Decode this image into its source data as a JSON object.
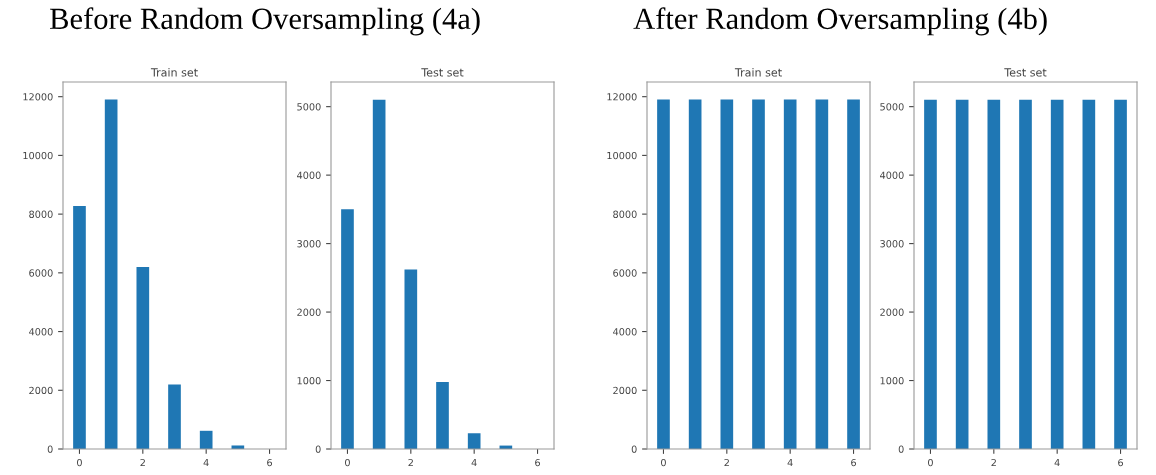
{
  "chart_data": [
    {
      "type": "bar",
      "title": "Train set",
      "annotations": [
        "Before Random Oversampling (4a)"
      ],
      "x": [
        0,
        1,
        2,
        3,
        4,
        5
      ],
      "values": [
        8280,
        11900,
        6200,
        2200,
        620,
        120
      ],
      "color": "#1f77b4",
      "xlim": [
        -0.52,
        6.52
      ],
      "xticks": [
        0,
        2,
        4,
        6
      ],
      "ylim": [
        0,
        12500
      ],
      "yticks": [
        0,
        2000,
        4000,
        6000,
        8000,
        10000,
        12000
      ],
      "grid": false
    },
    {
      "type": "bar",
      "title": "Test set",
      "x": [
        0,
        1,
        2,
        3,
        4,
        5
      ],
      "values": [
        3500,
        5100,
        2620,
        980,
        230,
        50
      ],
      "color": "#1f77b4",
      "xlim": [
        -0.52,
        6.52
      ],
      "xticks": [
        0,
        2,
        4,
        6
      ],
      "ylim": [
        0,
        5360
      ],
      "yticks": [
        0,
        1000,
        2000,
        3000,
        4000,
        5000
      ],
      "grid": false
    },
    {
      "type": "bar",
      "title": "Train set",
      "annotations": [
        "After Random Oversampling (4b)"
      ],
      "x": [
        0,
        1,
        2,
        3,
        4,
        5,
        6
      ],
      "values": [
        11900,
        11900,
        11900,
        11900,
        11900,
        11900,
        11900
      ],
      "color": "#1f77b4",
      "xlim": [
        -0.52,
        6.52
      ],
      "xticks": [
        0,
        2,
        4,
        6
      ],
      "ylim": [
        0,
        12500
      ],
      "yticks": [
        0,
        2000,
        4000,
        6000,
        8000,
        10000,
        12000
      ],
      "grid": false
    },
    {
      "type": "bar",
      "title": "Test set",
      "x": [
        0,
        1,
        2,
        3,
        4,
        5,
        6
      ],
      "values": [
        5100,
        5100,
        5100,
        5100,
        5100,
        5100,
        5100
      ],
      "color": "#1f77b4",
      "xlim": [
        -0.52,
        6.52
      ],
      "xticks": [
        0,
        2,
        4,
        6
      ],
      "ylim": [
        0,
        5360
      ],
      "yticks": [
        0,
        1000,
        2000,
        3000,
        4000,
        5000
      ],
      "grid": false
    }
  ]
}
